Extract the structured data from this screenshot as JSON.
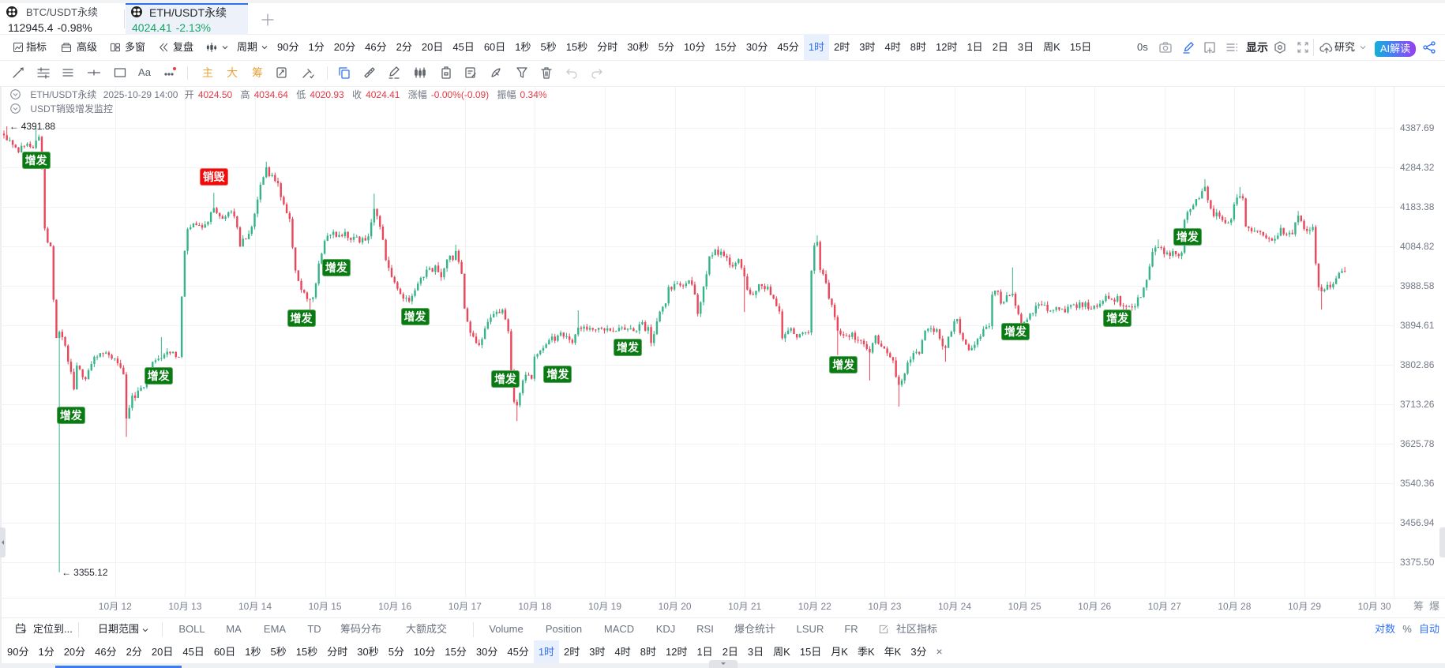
{
  "tabs": [
    {
      "symbol": "BTC/USDT永续",
      "price": "112945.4",
      "change": "-0.98%"
    },
    {
      "symbol": "ETH/USDT永续",
      "price": "4024.41",
      "change": "-2.13%"
    }
  ],
  "toolbar": {
    "indicators": "指标",
    "advanced": "高级",
    "multi_window": "多窗",
    "replay": "复盘",
    "period": "周期",
    "timeframes": [
      "90分",
      "1分",
      "20分",
      "46分",
      "2分",
      "20日",
      "45日",
      "60日",
      "1秒",
      "5秒",
      "15秒",
      "分时",
      "30秒",
      "5分",
      "10分",
      "15分",
      "30分",
      "45分",
      "1时",
      "2时",
      "3时",
      "4时",
      "8时",
      "12时",
      "1日",
      "2日",
      "3日",
      "周K",
      "15日"
    ],
    "active_timeframe": "1时",
    "countdown": "0s",
    "display": "显示",
    "research": "研究",
    "ai_interpret": "AI解读"
  },
  "drawing_toolbar": {
    "text_tool": "Aa",
    "main": "主",
    "big": "大",
    "chips": "筹"
  },
  "legend": {
    "symbol": "ETH/USDT永续",
    "datetime": "2025-10-29 14:00",
    "open_label": "开",
    "open": "4024.50",
    "high_label": "高",
    "high": "4034.64",
    "low_label": "低",
    "low": "4020.93",
    "close_label": "收",
    "close": "4024.41",
    "change_label": "涨幅",
    "change": "-0.00%(-0.09)",
    "amplitude_label": "振幅",
    "amplitude": "0.34%",
    "indicator_name": "USDT销毁增发监控"
  },
  "axis_side_labels": {
    "chips": "筹",
    "liquidation": "爆"
  },
  "chart_data": {
    "type": "candlestick",
    "title": "ETH/USDT永续",
    "interval": "1时",
    "y_axis": {
      "scale": "log",
      "ticks": [
        4387.69,
        4284.32,
        4183.38,
        4084.82,
        3988.58,
        3894.61,
        3802.86,
        3713.26,
        3625.78,
        3540.36,
        3456.94,
        3375.5
      ],
      "tick_labels": [
        "4387.69",
        "4284.32",
        "4183.38",
        "4084.82",
        "3988.58",
        "3894.61",
        "3802.86",
        "3713.26",
        "3625.78",
        "3540.36",
        "3456.94",
        "3375.50"
      ]
    },
    "x_axis": {
      "labels": [
        "10月 12",
        "10月 13",
        "10月 14",
        "10月 15",
        "10月 16",
        "10月 17",
        "10月 18",
        "10月 19",
        "10月 20",
        "10月 21",
        "10月 22",
        "10月 23",
        "10月 24",
        "10月 25",
        "10月 26",
        "10月 27",
        "10月 28",
        "10月 29",
        "10月 30"
      ]
    },
    "extremes": {
      "arrow": "←",
      "high": "4391.88",
      "high_index": 1,
      "low": "3355.12",
      "low_index": 19
    },
    "candle_count": 461,
    "last_candle": {
      "open": 4024.5,
      "high": 4034.64,
      "low": 4020.93,
      "close": 4024.41
    },
    "close_path": [
      [
        0,
        4367
      ],
      [
        1,
        4361
      ],
      [
        3,
        4340
      ],
      [
        4,
        4330
      ],
      [
        5,
        4325
      ],
      [
        6,
        4333
      ],
      [
        8,
        4343
      ],
      [
        10,
        4340
      ],
      [
        11,
        4354
      ],
      [
        12,
        4367
      ],
      [
        13,
        4278
      ],
      [
        14,
        4128
      ],
      [
        15,
        4098
      ],
      [
        16,
        4079
      ],
      [
        17,
        3954
      ],
      [
        18,
        3861
      ],
      [
        19,
        3880
      ],
      [
        21,
        3843
      ],
      [
        23,
        3788
      ],
      [
        24,
        3752
      ],
      [
        25,
        3797
      ],
      [
        28,
        3770
      ],
      [
        30,
        3806
      ],
      [
        33,
        3834
      ],
      [
        35,
        3825
      ],
      [
        38,
        3816
      ],
      [
        41,
        3779
      ],
      [
        42,
        3682
      ],
      [
        44,
        3726
      ],
      [
        47,
        3744
      ],
      [
        50,
        3788
      ],
      [
        52,
        3816
      ],
      [
        55,
        3828
      ],
      [
        58,
        3834
      ],
      [
        60,
        3816
      ],
      [
        61,
        3964
      ],
      [
        62,
        4069
      ],
      [
        63,
        4128
      ],
      [
        65,
        4138
      ],
      [
        68,
        4128
      ],
      [
        70,
        4148
      ],
      [
        72,
        4183
      ],
      [
        75,
        4157
      ],
      [
        77,
        4167
      ],
      [
        79,
        4163
      ],
      [
        81,
        4089
      ],
      [
        83,
        4108
      ],
      [
        85,
        4138
      ],
      [
        87,
        4207
      ],
      [
        89,
        4258
      ],
      [
        90,
        4278
      ],
      [
        92,
        4258
      ],
      [
        94,
        4244
      ],
      [
        96,
        4187
      ],
      [
        98,
        4148
      ],
      [
        99,
        4089
      ],
      [
        100,
        4021
      ],
      [
        102,
        3973
      ],
      [
        104,
        3964
      ],
      [
        106,
        3954
      ],
      [
        108,
        4050
      ],
      [
        110,
        4098
      ],
      [
        112,
        4118
      ],
      [
        115,
        4112
      ],
      [
        117,
        4116
      ],
      [
        120,
        4104
      ],
      [
        123,
        4098
      ],
      [
        125,
        4108
      ],
      [
        127,
        4183
      ],
      [
        128,
        4157
      ],
      [
        130,
        4098
      ],
      [
        131,
        4050
      ],
      [
        133,
        4002
      ],
      [
        135,
        3977
      ],
      [
        137,
        3964
      ],
      [
        139,
        3958
      ],
      [
        141,
        3983
      ],
      [
        143,
        4011
      ],
      [
        145,
        4021
      ],
      [
        148,
        4031
      ],
      [
        150,
        4011
      ],
      [
        152,
        4050
      ],
      [
        154,
        4059
      ],
      [
        155,
        4069
      ],
      [
        157,
        4011
      ],
      [
        158,
        3936
      ],
      [
        160,
        3880
      ],
      [
        161,
        3861
      ],
      [
        163,
        3843
      ],
      [
        165,
        3880
      ],
      [
        167,
        3917
      ],
      [
        169,
        3930
      ],
      [
        171,
        3926
      ],
      [
        173,
        3880
      ],
      [
        174,
        3788
      ],
      [
        175,
        3726
      ],
      [
        176,
        3708
      ],
      [
        178,
        3761
      ],
      [
        179,
        3779
      ],
      [
        181,
        3770
      ],
      [
        182,
        3825
      ],
      [
        184,
        3834
      ],
      [
        186,
        3852
      ],
      [
        188,
        3861
      ],
      [
        191,
        3870
      ],
      [
        193,
        3870
      ],
      [
        195,
        3861
      ],
      [
        197,
        3889
      ],
      [
        200,
        3884
      ],
      [
        202,
        3880
      ],
      [
        205,
        3884
      ],
      [
        208,
        3889
      ],
      [
        211,
        3884
      ],
      [
        213,
        3889
      ],
      [
        216,
        3884
      ],
      [
        219,
        3895
      ],
      [
        221,
        3884
      ],
      [
        222,
        3852
      ],
      [
        224,
        3898
      ],
      [
        225,
        3926
      ],
      [
        227,
        3945
      ],
      [
        228,
        3983
      ],
      [
        230,
        3992
      ],
      [
        232,
        3996
      ],
      [
        234,
        3992
      ],
      [
        236,
        3996
      ],
      [
        238,
        3926
      ],
      [
        239,
        3954
      ],
      [
        241,
        4021
      ],
      [
        242,
        4059
      ],
      [
        244,
        4069
      ],
      [
        246,
        4069
      ],
      [
        248,
        4050
      ],
      [
        250,
        4040
      ],
      [
        252,
        4046
      ],
      [
        254,
        4008
      ],
      [
        256,
        3964
      ],
      [
        258,
        3973
      ],
      [
        259,
        3989
      ],
      [
        262,
        3983
      ],
      [
        264,
        3954
      ],
      [
        266,
        3932
      ],
      [
        267,
        3870
      ],
      [
        268,
        3880
      ],
      [
        270,
        3884
      ],
      [
        272,
        3870
      ],
      [
        274,
        3884
      ],
      [
        276,
        3870
      ],
      [
        277,
        4021
      ],
      [
        278,
        4079
      ],
      [
        279,
        4089
      ],
      [
        280,
        4031
      ],
      [
        282,
        4002
      ],
      [
        283,
        3954
      ],
      [
        285,
        3917
      ],
      [
        286,
        3880
      ],
      [
        289,
        3870
      ],
      [
        291,
        3870
      ],
      [
        293,
        3865
      ],
      [
        295,
        3843
      ],
      [
        297,
        3825
      ],
      [
        299,
        3870
      ],
      [
        301,
        3843
      ],
      [
        303,
        3825
      ],
      [
        305,
        3806
      ],
      [
        307,
        3752
      ],
      [
        308,
        3761
      ],
      [
        310,
        3806
      ],
      [
        312,
        3828
      ],
      [
        314,
        3834
      ],
      [
        316,
        3880
      ],
      [
        318,
        3886
      ],
      [
        320,
        3884
      ],
      [
        322,
        3852
      ],
      [
        323,
        3843
      ],
      [
        325,
        3880
      ],
      [
        327,
        3917
      ],
      [
        328,
        3880
      ],
      [
        330,
        3843
      ],
      [
        331,
        3834
      ],
      [
        333,
        3852
      ],
      [
        335,
        3870
      ],
      [
        336,
        3884
      ],
      [
        338,
        3898
      ],
      [
        339,
        3970
      ],
      [
        341,
        3979
      ],
      [
        342,
        3954
      ],
      [
        344,
        3958
      ],
      [
        346,
        3964
      ],
      [
        348,
        3917
      ],
      [
        349,
        3898
      ],
      [
        351,
        3908
      ],
      [
        353,
        3926
      ],
      [
        355,
        3940
      ],
      [
        357,
        3936
      ],
      [
        359,
        3930
      ],
      [
        361,
        3932
      ],
      [
        363,
        3926
      ],
      [
        366,
        3945
      ],
      [
        368,
        3940
      ],
      [
        371,
        3945
      ],
      [
        373,
        3936
      ],
      [
        376,
        3940
      ],
      [
        378,
        3960
      ],
      [
        380,
        3954
      ],
      [
        382,
        3958
      ],
      [
        384,
        3940
      ],
      [
        386,
        3940
      ],
      [
        388,
        3945
      ],
      [
        390,
        3964
      ],
      [
        392,
        4002
      ],
      [
        393,
        4031
      ],
      [
        394,
        4073
      ],
      [
        396,
        4079
      ],
      [
        398,
        4069
      ],
      [
        400,
        4065
      ],
      [
        402,
        4069
      ],
      [
        404,
        4065
      ],
      [
        405,
        4148
      ],
      [
        406,
        4167
      ],
      [
        407,
        4183
      ],
      [
        409,
        4197
      ],
      [
        411,
        4217
      ],
      [
        412,
        4232
      ],
      [
        413,
        4203
      ],
      [
        415,
        4167
      ],
      [
        417,
        4157
      ],
      [
        419,
        4148
      ],
      [
        421,
        4144
      ],
      [
        422,
        4183
      ],
      [
        424,
        4217
      ],
      [
        425,
        4207
      ],
      [
        426,
        4138
      ],
      [
        427,
        4124
      ],
      [
        430,
        4124
      ],
      [
        432,
        4112
      ],
      [
        434,
        4098
      ],
      [
        436,
        4108
      ],
      [
        438,
        4124
      ],
      [
        440,
        4122
      ],
      [
        442,
        4122
      ],
      [
        444,
        4157
      ],
      [
        445,
        4144
      ],
      [
        447,
        4118
      ],
      [
        449,
        4128
      ],
      [
        450,
        4050
      ],
      [
        451,
        3992
      ],
      [
        452,
        3977
      ],
      [
        453,
        3983
      ],
      [
        455,
        3989
      ],
      [
        457,
        4002
      ],
      [
        458,
        4021
      ],
      [
        459,
        4031
      ],
      [
        460,
        4024.41
      ]
    ],
    "spikes": [
      [
        1,
        4391.88
      ],
      [
        11,
        4388
      ],
      [
        19,
        3355.12
      ],
      [
        42,
        3641
      ],
      [
        54,
        3867
      ],
      [
        72,
        4219
      ],
      [
        90,
        4299
      ],
      [
        105,
        3893
      ],
      [
        127,
        4217
      ],
      [
        155,
        4089
      ],
      [
        176,
        3676
      ],
      [
        197,
        3930
      ],
      [
        254,
        3926
      ],
      [
        279,
        4112
      ],
      [
        286,
        3825
      ],
      [
        297,
        3767
      ],
      [
        307,
        3708
      ],
      [
        323,
        3810
      ],
      [
        346,
        4033
      ],
      [
        396,
        4102
      ],
      [
        412,
        4254
      ],
      [
        424,
        4234
      ],
      [
        444,
        4173
      ],
      [
        452,
        3932
      ]
    ],
    "markers": [
      {
        "index": 11,
        "price": 4303,
        "text": "增发",
        "kind": "issue"
      },
      {
        "index": 23,
        "price": 3689,
        "text": "增发",
        "kind": "issue"
      },
      {
        "index": 53,
        "price": 3777,
        "text": "增发",
        "kind": "issue"
      },
      {
        "index": 72,
        "price": 4260,
        "text": "销毁",
        "kind": "burn"
      },
      {
        "index": 102,
        "price": 3911,
        "text": "增发",
        "kind": "issue"
      },
      {
        "index": 114,
        "price": 4033,
        "text": "增发",
        "kind": "issue"
      },
      {
        "index": 141,
        "price": 3915,
        "text": "增发",
        "kind": "issue"
      },
      {
        "index": 172,
        "price": 3770,
        "text": "增发",
        "kind": "issue"
      },
      {
        "index": 190,
        "price": 3781,
        "text": "增发",
        "kind": "issue"
      },
      {
        "index": 214,
        "price": 3843,
        "text": "增发",
        "kind": "issue"
      },
      {
        "index": 288,
        "price": 3803,
        "text": "增发",
        "kind": "issue"
      },
      {
        "index": 347,
        "price": 3880,
        "text": "增发",
        "kind": "issue"
      },
      {
        "index": 382,
        "price": 3911,
        "text": "增发",
        "kind": "issue"
      },
      {
        "index": 406,
        "price": 4108,
        "text": "增发",
        "kind": "issue"
      }
    ],
    "colors": {
      "up": "#35b487",
      "down": "#e9465a",
      "issue": "#0a7a12",
      "burn": "#f50a0a"
    }
  },
  "indicator_bar": {
    "locate": "定位到...",
    "date_range": "日期范围",
    "main_indicators": [
      "BOLL",
      "MA",
      "EMA",
      "TD",
      "筹码分布",
      "大额成交"
    ],
    "sub_indicators": [
      "Volume",
      "Position",
      "MACD",
      "KDJ",
      "RSI",
      "爆仓统计",
      "LSUR",
      "FR"
    ],
    "community": "社区指标",
    "scale_log": "对数",
    "scale_percent": "%",
    "scale_auto": "自动"
  },
  "bottom_timeframes": {
    "items": [
      "90分",
      "1分",
      "20分",
      "46分",
      "2分",
      "20日",
      "45日",
      "60日",
      "1秒",
      "5秒",
      "15秒",
      "分时",
      "30秒",
      "5分",
      "10分",
      "15分",
      "30分",
      "45分",
      "1时",
      "2时",
      "3时",
      "4时",
      "8时",
      "12时",
      "1日",
      "2日",
      "3日",
      "周K",
      "15日",
      "月K",
      "季K",
      "年K",
      "3分"
    ],
    "active": "1时",
    "close_icon": "×"
  }
}
